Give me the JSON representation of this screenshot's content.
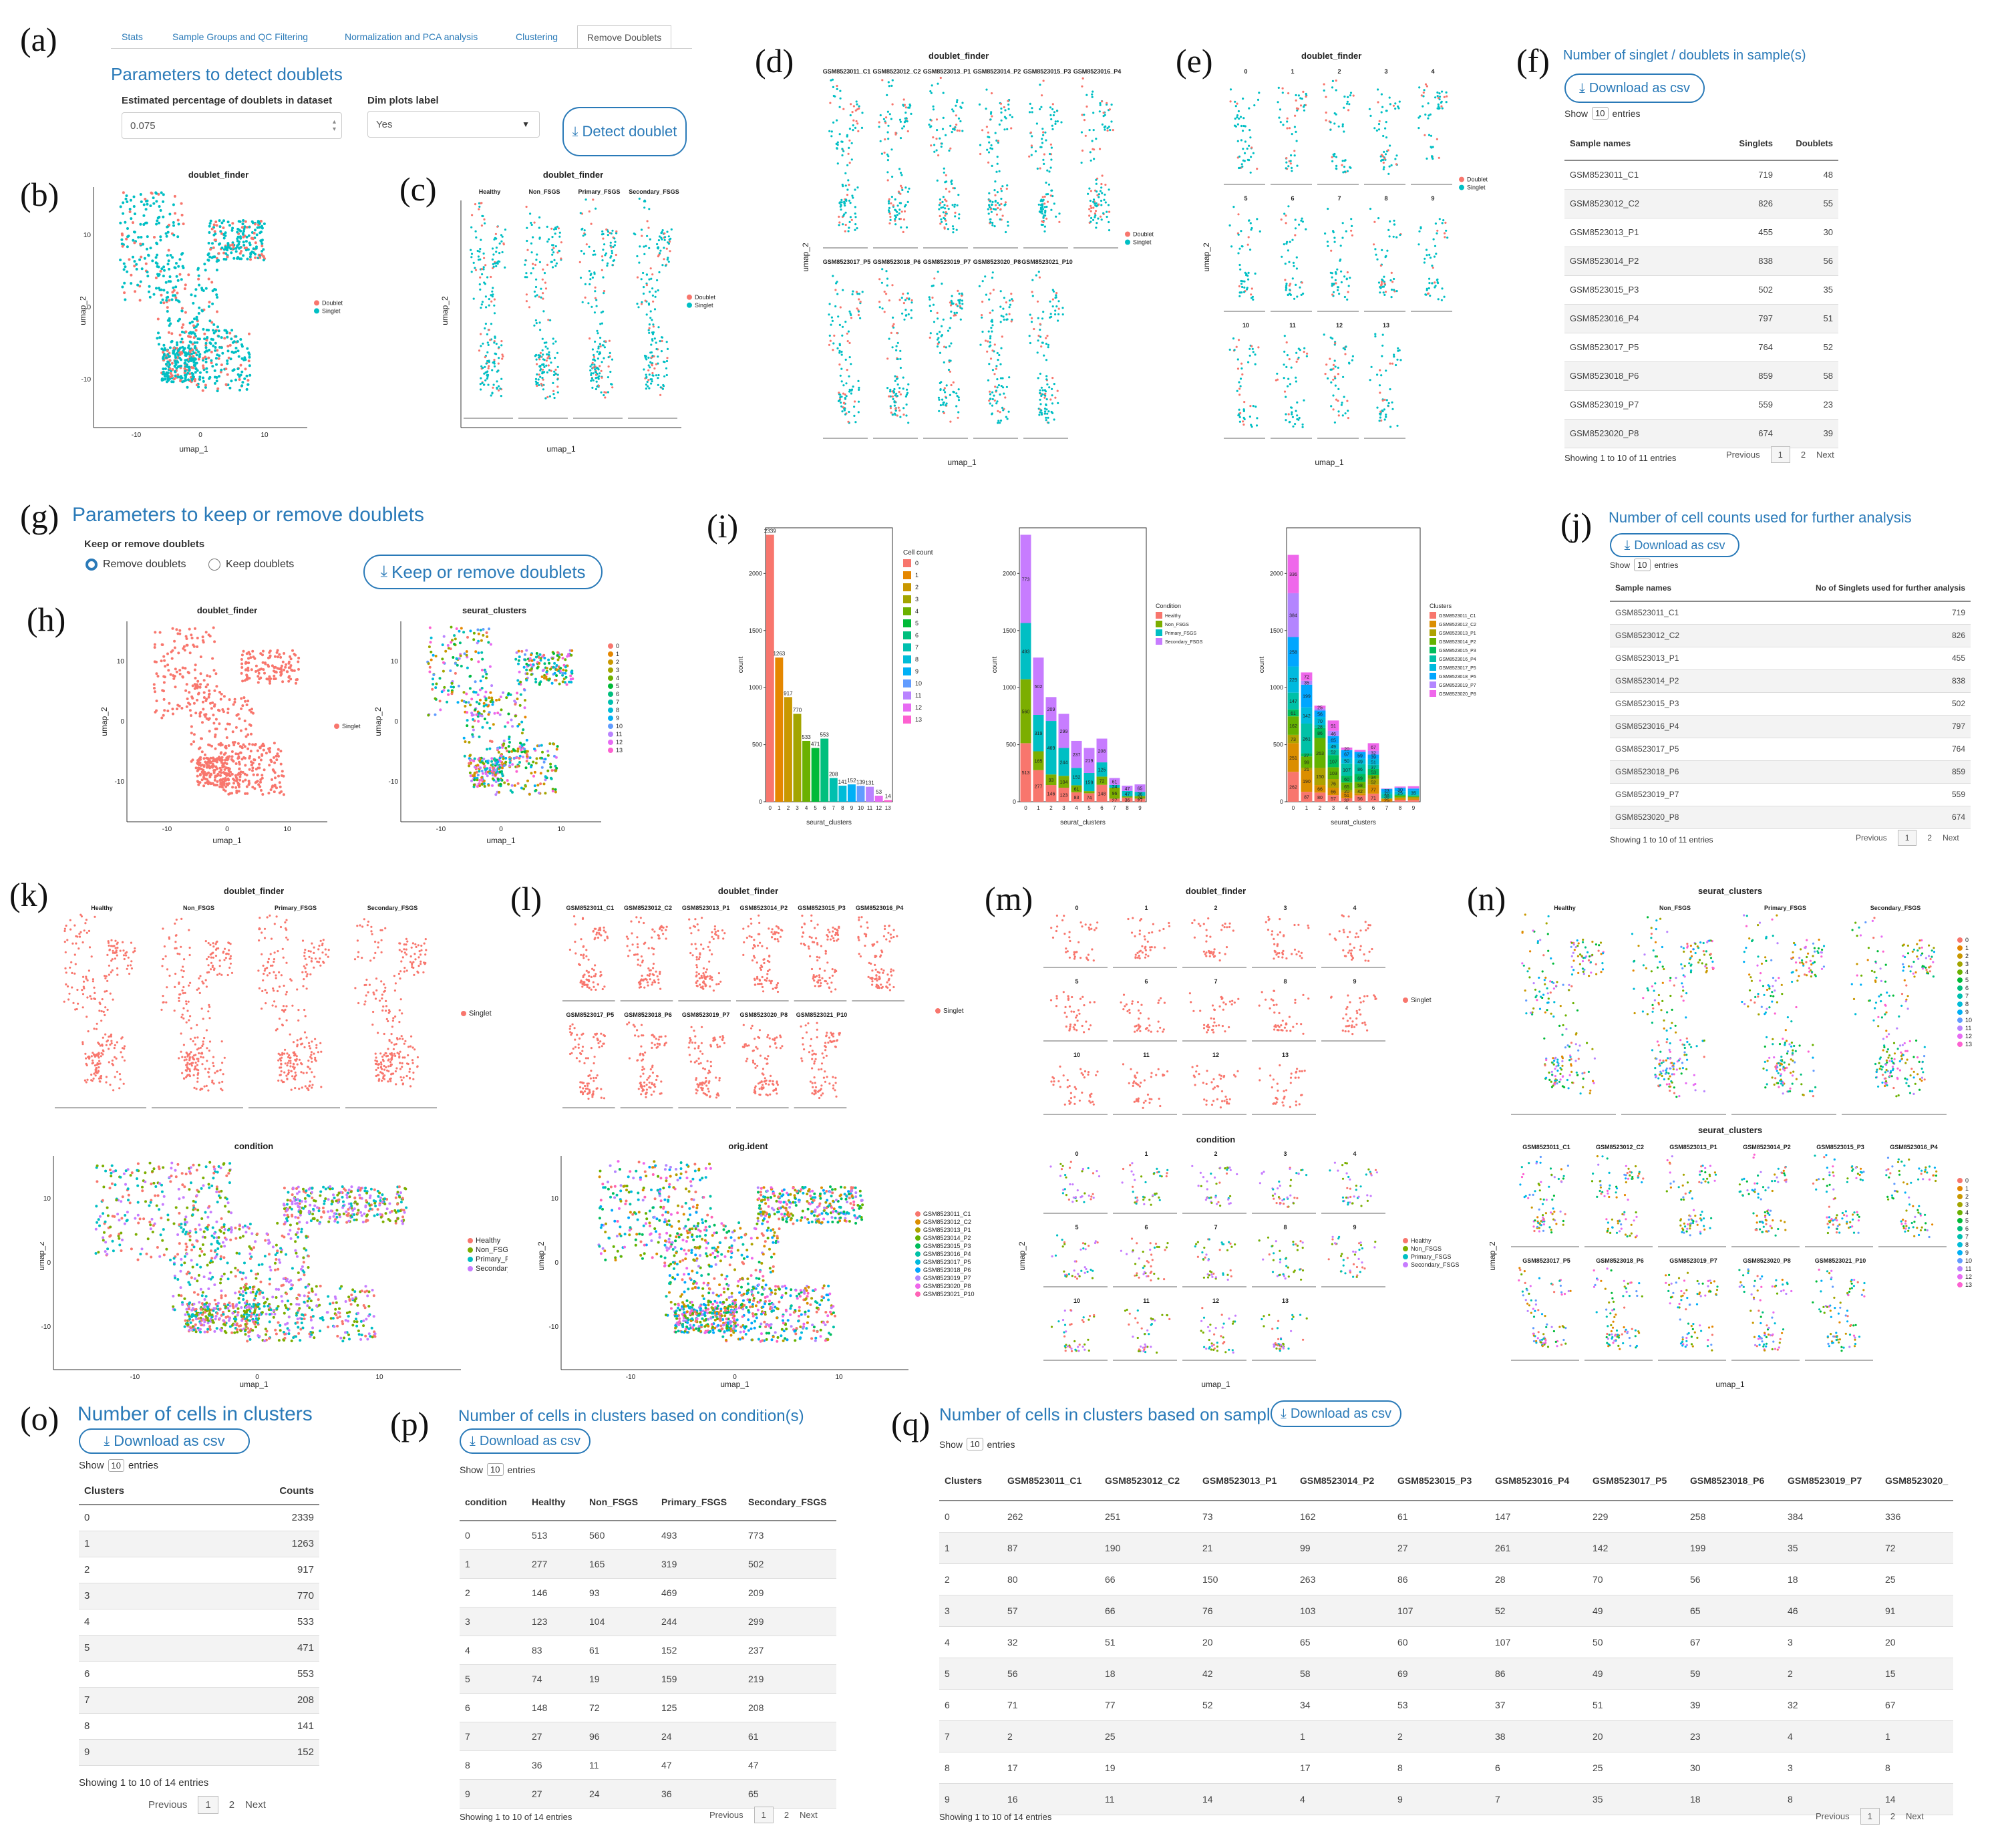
{
  "panels": {
    "a": "(a)",
    "b": "(b)",
    "c": "(c)",
    "d": "(d)",
    "e": "(e)",
    "f": "(f)",
    "g": "(g)",
    "h": "(h)",
    "i": "(i)",
    "j": "(j)",
    "k": "(k)",
    "l": "(l)",
    "m": "(m)",
    "n": "(n)",
    "o": "(o)",
    "p": "(p)",
    "q": "(q)"
  },
  "tabs": [
    "Stats",
    "Sample Groups and QC Filtering",
    "Normalization and PCA analysis",
    "Clustering",
    "Remove Doublets"
  ],
  "detect": {
    "title": "Parameters to detect doublets",
    "pct_label": "Estimated percentage of doublets in dataset",
    "pct_value": "0.075",
    "dim_label": "Dim plots label",
    "dim_value": "Yes",
    "button": "Detect doublet"
  },
  "keep": {
    "title": "Parameters to keep or remove doublets",
    "radio_label": "Keep or remove doublets",
    "opt_remove": "Remove doublets",
    "opt_keep": "Keep doublets",
    "button": "Keep or remove doublets"
  },
  "common": {
    "download": "Download as csv",
    "show": "Show",
    "entries": "entries",
    "ten": "10",
    "previous": "Previous",
    "next": "Next",
    "p1": "1",
    "p2": "2",
    "doublet_finder": "doublet_finder",
    "seurat_clusters": "seurat_clusters",
    "condition": "condition",
    "orig_ident": "orig.ident",
    "umap_1": "umap_1",
    "umap_2": "umap_2",
    "doublet": "Doublet",
    "singlet": "Singlet",
    "count": "count",
    "cell_count": "Cell count",
    "clusters_leg": "Clusters"
  },
  "conditions": [
    "Healthy",
    "Non_FSGS",
    "Primary_FSGS",
    "Secondary_FSGS"
  ],
  "samples": [
    "GSM8523011_C1",
    "GSM8523012_C2",
    "GSM8523013_P1",
    "GSM8523014_P2",
    "GSM8523015_P3",
    "GSM8523016_P4",
    "GSM8523017_P5",
    "GSM8523018_P6",
    "GSM8523019_P7",
    "GSM8523020_P8",
    "GSM8523021_P10"
  ],
  "clusters": [
    "0",
    "1",
    "2",
    "3",
    "4",
    "5",
    "6",
    "7",
    "8",
    "9",
    "10",
    "11",
    "12",
    "13"
  ],
  "ticks": {
    "m10": "-10",
    "z": "0",
    "p10": "10"
  },
  "table_f": {
    "title": "Number of singlet / doublets in sample(s)",
    "headers": [
      "Sample names",
      "Singlets",
      "Doublets"
    ],
    "rows": [
      [
        "GSM8523011_C1",
        "719",
        "48"
      ],
      [
        "GSM8523012_C2",
        "826",
        "55"
      ],
      [
        "GSM8523013_P1",
        "455",
        "30"
      ],
      [
        "GSM8523014_P2",
        "838",
        "56"
      ],
      [
        "GSM8523015_P3",
        "502",
        "35"
      ],
      [
        "GSM8523016_P4",
        "797",
        "51"
      ],
      [
        "GSM8523017_P5",
        "764",
        "52"
      ],
      [
        "GSM8523018_P6",
        "859",
        "58"
      ],
      [
        "GSM8523019_P7",
        "559",
        "23"
      ],
      [
        "GSM8523020_P8",
        "674",
        "39"
      ]
    ],
    "info": "Showing 1 to 10 of 11 entries"
  },
  "table_j": {
    "title": "Number of cell counts used for further analysis",
    "headers": [
      "Sample names",
      "No of Singlets used for further analysis"
    ],
    "rows": [
      [
        "GSM8523011_C1",
        "719"
      ],
      [
        "GSM8523012_C2",
        "826"
      ],
      [
        "GSM8523013_P1",
        "455"
      ],
      [
        "GSM8523014_P2",
        "838"
      ],
      [
        "GSM8523015_P3",
        "502"
      ],
      [
        "GSM8523016_P4",
        "797"
      ],
      [
        "GSM8523017_P5",
        "764"
      ],
      [
        "GSM8523018_P6",
        "859"
      ],
      [
        "GSM8523019_P7",
        "559"
      ],
      [
        "GSM8523020_P8",
        "674"
      ]
    ],
    "info": "Showing 1 to 10 of 11 entries"
  },
  "table_o": {
    "title": "Number of cells in clusters",
    "headers": [
      "Clusters",
      "Counts"
    ],
    "rows": [
      [
        "0",
        "2339"
      ],
      [
        "1",
        "1263"
      ],
      [
        "2",
        "917"
      ],
      [
        "3",
        "770"
      ],
      [
        "4",
        "533"
      ],
      [
        "5",
        "471"
      ],
      [
        "6",
        "553"
      ],
      [
        "7",
        "208"
      ],
      [
        "8",
        "141"
      ],
      [
        "9",
        "152"
      ]
    ],
    "info": "Showing 1 to 10 of 14 entries"
  },
  "table_p": {
    "title": "Number of cells in clusters based on condition(s)",
    "headers": [
      "condition",
      "Healthy",
      "Non_FSGS",
      "Primary_FSGS",
      "Secondary_FSGS"
    ],
    "rows": [
      [
        "0",
        "513",
        "560",
        "493",
        "773"
      ],
      [
        "1",
        "277",
        "165",
        "319",
        "502"
      ],
      [
        "2",
        "146",
        "93",
        "469",
        "209"
      ],
      [
        "3",
        "123",
        "104",
        "244",
        "299"
      ],
      [
        "4",
        "83",
        "61",
        "152",
        "237"
      ],
      [
        "5",
        "74",
        "19",
        "159",
        "219"
      ],
      [
        "6",
        "148",
        "72",
        "125",
        "208"
      ],
      [
        "7",
        "27",
        "96",
        "24",
        "61"
      ],
      [
        "8",
        "36",
        "11",
        "47",
        "47"
      ],
      [
        "9",
        "27",
        "24",
        "36",
        "65"
      ]
    ],
    "info": "Showing 1 to 10 of 14 entries"
  },
  "table_q": {
    "title": "Number of cells in clusters based on sample(s)",
    "headers": [
      "Clusters",
      "GSM8523011_C1",
      "GSM8523012_C2",
      "GSM8523013_P1",
      "GSM8523014_P2",
      "GSM8523015_P3",
      "GSM8523016_P4",
      "GSM8523017_P5",
      "GSM8523018_P6",
      "GSM8523019_P7",
      "GSM8523020_"
    ],
    "rows": [
      [
        "0",
        "262",
        "251",
        "73",
        "162",
        "61",
        "147",
        "229",
        "258",
        "384",
        "336"
      ],
      [
        "1",
        "87",
        "190",
        "21",
        "99",
        "27",
        "261",
        "142",
        "199",
        "35",
        "72"
      ],
      [
        "2",
        "80",
        "66",
        "150",
        "263",
        "86",
        "28",
        "70",
        "56",
        "18",
        "25"
      ],
      [
        "3",
        "57",
        "66",
        "76",
        "103",
        "107",
        "52",
        "49",
        "65",
        "46",
        "91"
      ],
      [
        "4",
        "32",
        "51",
        "20",
        "65",
        "60",
        "107",
        "50",
        "67",
        "3",
        "20"
      ],
      [
        "5",
        "56",
        "18",
        "42",
        "58",
        "69",
        "86",
        "49",
        "59",
        "2",
        "15"
      ],
      [
        "6",
        "71",
        "77",
        "52",
        "34",
        "53",
        "37",
        "51",
        "39",
        "32",
        "67"
      ],
      [
        "7",
        "2",
        "25",
        "",
        "1",
        "2",
        "38",
        "20",
        "23",
        "4",
        "1"
      ],
      [
        "8",
        "17",
        "19",
        "",
        "17",
        "8",
        "6",
        "25",
        "30",
        "3",
        "8"
      ],
      [
        "9",
        "16",
        "11",
        "14",
        "4",
        "9",
        "7",
        "35",
        "18",
        "8",
        "14"
      ]
    ],
    "info": "Showing 1 to 10 of 14 entries"
  },
  "colors": {
    "accent": "#2a7ab8",
    "doublet": "#f8766d",
    "singlet": "#00bfc4",
    "cluster_palette": [
      "#f8766d",
      "#e58700",
      "#c99800",
      "#a3a500",
      "#6bb100",
      "#00ba38",
      "#00bf7d",
      "#00c0af",
      "#00bcd8",
      "#00b0f6",
      "#619cff",
      "#b983ff",
      "#e76bf3",
      "#fd61d1"
    ],
    "condition_palette": [
      "#f8766d",
      "#7cae00",
      "#00bfc4",
      "#c77cff"
    ],
    "sample_palette": [
      "#f8766d",
      "#db8e00",
      "#aea200",
      "#64b200",
      "#00bd5c",
      "#00c1a7",
      "#00bade",
      "#00a6ff",
      "#b385ff",
      "#ef67eb",
      "#ff63b6"
    ]
  },
  "chart_data": [
    {
      "type": "bar",
      "title": "",
      "xlabel": "seurat_clusters",
      "ylabel": "count",
      "categories": [
        "0",
        "1",
        "2",
        "3",
        "4",
        "5",
        "6",
        "7",
        "8",
        "9",
        "10",
        "11",
        "12",
        "13"
      ],
      "values": [
        2339,
        1263,
        917,
        770,
        533,
        471,
        553,
        208,
        141,
        152,
        139,
        131,
        53,
        14
      ],
      "ylim": [
        0,
        2400
      ],
      "legend_title": "Cell count"
    },
    {
      "type": "bar",
      "stacked": true,
      "title": "",
      "xlabel": "seurat_clusters",
      "ylabel": "count",
      "categories": [
        "0",
        "1",
        "2",
        "3",
        "4",
        "5",
        "6",
        "7",
        "8",
        "9"
      ],
      "legend_title": "Condition",
      "series": [
        {
          "name": "Healthy",
          "values": [
            513,
            277,
            146,
            123,
            83,
            74,
            148,
            27,
            36,
            27
          ]
        },
        {
          "name": "Non_FSGS",
          "values": [
            560,
            165,
            93,
            104,
            61,
            19,
            72,
            96,
            11,
            24
          ]
        },
        {
          "name": "Primary_FSGS",
          "values": [
            493,
            319,
            469,
            244,
            152,
            159,
            125,
            24,
            47,
            36
          ]
        },
        {
          "name": "Secondary_FSGS",
          "values": [
            773,
            502,
            209,
            299,
            237,
            219,
            208,
            61,
            47,
            65
          ]
        }
      ],
      "ylim": [
        0,
        2400
      ]
    },
    {
      "type": "bar",
      "stacked": true,
      "title": "",
      "xlabel": "seurat_clusters",
      "ylabel": "count",
      "categories": [
        "0",
        "1",
        "2",
        "3",
        "4",
        "5",
        "6",
        "7",
        "8",
        "9"
      ],
      "legend_title": "Clusters",
      "series": [
        {
          "name": "GSM8523011_C1",
          "values": [
            262,
            87,
            80,
            57,
            32,
            56,
            71,
            2,
            17,
            16
          ]
        },
        {
          "name": "GSM8523012_C2",
          "values": [
            251,
            190,
            66,
            66,
            51,
            18,
            77,
            25,
            19,
            11
          ]
        },
        {
          "name": "GSM8523013_P1",
          "values": [
            73,
            21,
            150,
            76,
            20,
            42,
            52,
            0,
            0,
            14
          ]
        },
        {
          "name": "GSM8523014_P2",
          "values": [
            162,
            99,
            263,
            103,
            65,
            58,
            34,
            1,
            17,
            4
          ]
        },
        {
          "name": "GSM8523015_P3",
          "values": [
            61,
            27,
            86,
            107,
            60,
            69,
            53,
            2,
            8,
            9
          ]
        },
        {
          "name": "GSM8523016_P4",
          "values": [
            147,
            261,
            28,
            52,
            107,
            86,
            37,
            38,
            6,
            7
          ]
        },
        {
          "name": "GSM8523017_P5",
          "values": [
            229,
            142,
            70,
            49,
            50,
            49,
            51,
            20,
            25,
            35
          ]
        },
        {
          "name": "GSM8523018_P6",
          "values": [
            258,
            199,
            56,
            65,
            67,
            59,
            39,
            23,
            30,
            18
          ]
        },
        {
          "name": "GSM8523019_P7",
          "values": [
            384,
            35,
            18,
            46,
            3,
            2,
            32,
            4,
            3,
            8
          ]
        },
        {
          "name": "GSM8523020_P8",
          "values": [
            336,
            72,
            25,
            91,
            20,
            15,
            67,
            1,
            8,
            14
          ]
        }
      ],
      "ylim": [
        0,
        2400
      ]
    }
  ]
}
